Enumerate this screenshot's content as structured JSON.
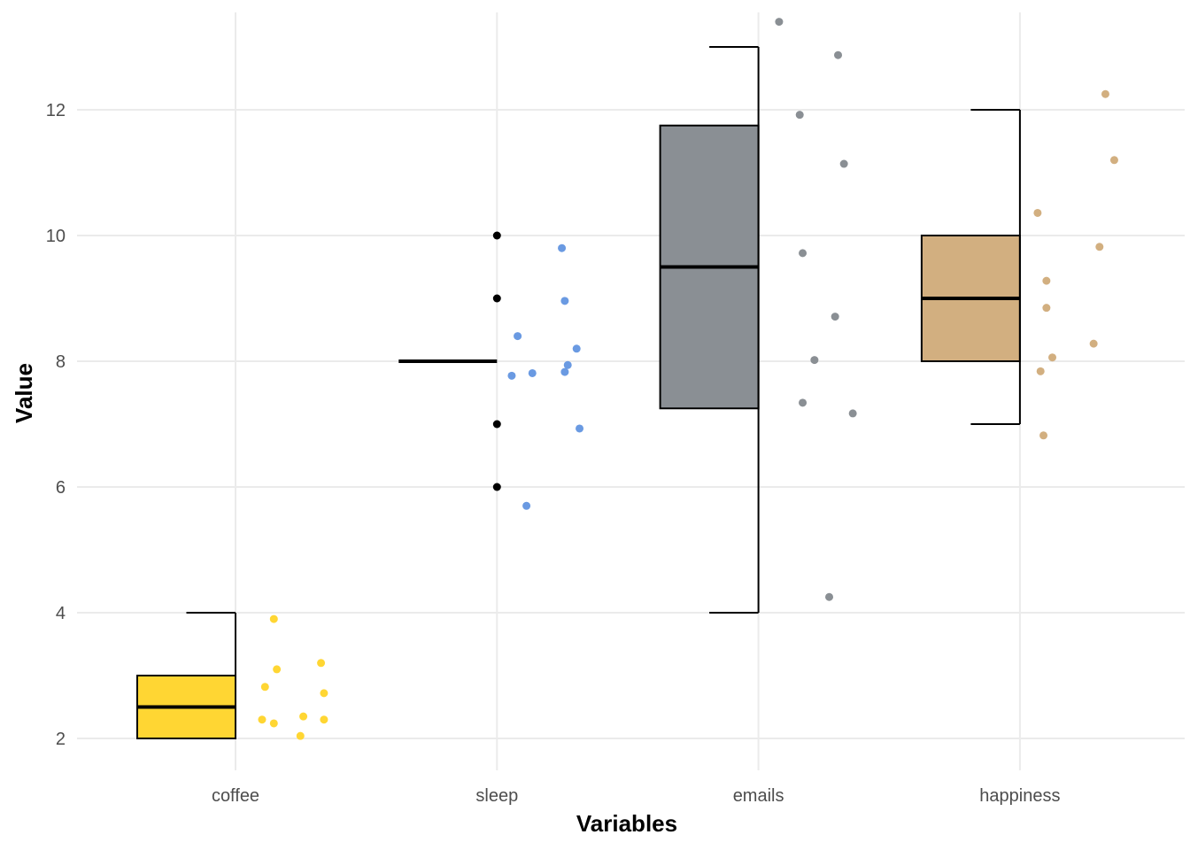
{
  "chart_data": {
    "type": "boxplot",
    "title": "",
    "xlabel": "Variables",
    "ylabel": "Value",
    "ylim": [
      1.5,
      13.5
    ],
    "y_ticks": [
      2,
      4,
      6,
      8,
      10,
      12
    ],
    "grid": true,
    "legend": "none",
    "categories": [
      "coffee",
      "sleep",
      "emails",
      "happiness"
    ],
    "boxes": [
      {
        "category": "coffee",
        "color": "#FFD633",
        "min": 2,
        "q1": 2,
        "median": 2.5,
        "q3": 3,
        "max": 4,
        "outliers": []
      },
      {
        "category": "sleep",
        "color": "#6A9AE2",
        "min": 8,
        "q1": 8,
        "median": 8,
        "q3": 8,
        "max": 8,
        "outliers": [
          6,
          7,
          9,
          10
        ]
      },
      {
        "category": "emails",
        "color": "#8A8F94",
        "min": 4,
        "q1": 7.25,
        "median": 9.5,
        "q3": 11.75,
        "max": 13,
        "outliers": []
      },
      {
        "category": "happiness",
        "color": "#D2AF80",
        "min": 7,
        "q1": 8,
        "median": 9,
        "q3": 10,
        "max": 12,
        "outliers": []
      }
    ],
    "jitter_points": [
      {
        "category": "coffee",
        "color": "#FFD633",
        "points": [
          {
            "dx": 0.13,
            "y": 3.9
          },
          {
            "dx": 0.14,
            "y": 3.1
          },
          {
            "dx": 0.29,
            "y": 3.2
          },
          {
            "dx": 0.1,
            "y": 2.82
          },
          {
            "dx": 0.3,
            "y": 2.72
          },
          {
            "dx": 0.09,
            "y": 2.3
          },
          {
            "dx": 0.13,
            "y": 2.24
          },
          {
            "dx": 0.23,
            "y": 2.35
          },
          {
            "dx": 0.3,
            "y": 2.3
          },
          {
            "dx": 0.22,
            "y": 2.04
          }
        ]
      },
      {
        "category": "sleep",
        "color": "#6A9AE2",
        "points": [
          {
            "dx": 0.22,
            "y": 9.8
          },
          {
            "dx": 0.23,
            "y": 8.96
          },
          {
            "dx": 0.07,
            "y": 8.4
          },
          {
            "dx": 0.27,
            "y": 8.2
          },
          {
            "dx": 0.24,
            "y": 7.94
          },
          {
            "dx": 0.12,
            "y": 7.81
          },
          {
            "dx": 0.05,
            "y": 7.77
          },
          {
            "dx": 0.23,
            "y": 7.83
          },
          {
            "dx": 0.28,
            "y": 6.93
          },
          {
            "dx": 0.1,
            "y": 5.7
          }
        ]
      },
      {
        "category": "emails",
        "color": "#8A8F94",
        "points": [
          {
            "dx": 0.07,
            "y": 13.4
          },
          {
            "dx": 0.27,
            "y": 12.87
          },
          {
            "dx": 0.14,
            "y": 11.92
          },
          {
            "dx": 0.29,
            "y": 11.14
          },
          {
            "dx": 0.15,
            "y": 9.72
          },
          {
            "dx": 0.26,
            "y": 8.71
          },
          {
            "dx": 0.19,
            "y": 8.02
          },
          {
            "dx": 0.15,
            "y": 7.34
          },
          {
            "dx": 0.32,
            "y": 7.17
          },
          {
            "dx": 0.24,
            "y": 4.25
          }
        ]
      },
      {
        "category": "happiness",
        "color": "#D2AF80",
        "points": [
          {
            "dx": 0.29,
            "y": 12.25
          },
          {
            "dx": 0.32,
            "y": 11.2
          },
          {
            "dx": 0.06,
            "y": 10.36
          },
          {
            "dx": 0.27,
            "y": 9.82
          },
          {
            "dx": 0.09,
            "y": 9.28
          },
          {
            "dx": 0.09,
            "y": 8.85
          },
          {
            "dx": 0.25,
            "y": 8.28
          },
          {
            "dx": 0.11,
            "y": 8.06
          },
          {
            "dx": 0.07,
            "y": 7.84
          },
          {
            "dx": 0.08,
            "y": 6.82
          }
        ]
      }
    ]
  }
}
